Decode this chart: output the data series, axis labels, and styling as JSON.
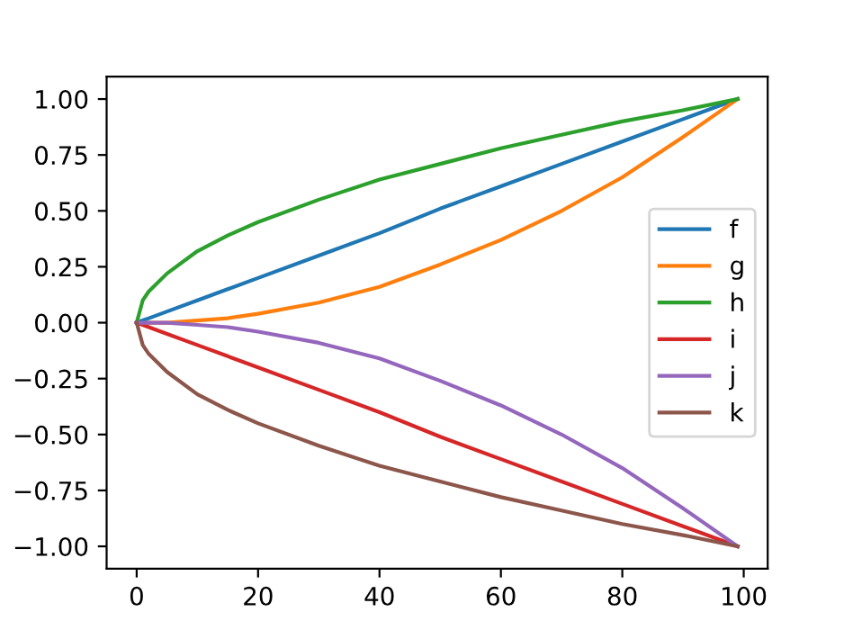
{
  "chart_data": {
    "type": "line",
    "x": [
      0,
      1,
      2,
      5,
      10,
      15,
      20,
      30,
      40,
      50,
      60,
      70,
      80,
      90,
      99
    ],
    "series": [
      {
        "name": "f",
        "color": "#1f77b4",
        "values": [
          0,
          0.01,
          0.02,
          0.05,
          0.1,
          0.15,
          0.2,
          0.3,
          0.4,
          0.51,
          0.61,
          0.71,
          0.81,
          0.91,
          1
        ]
      },
      {
        "name": "g",
        "color": "#ff7f0e",
        "values": [
          null,
          null,
          0,
          0,
          0.01,
          0.02,
          0.04,
          0.09,
          0.16,
          0.26,
          0.37,
          0.5,
          0.65,
          0.83,
          1
        ]
      },
      {
        "name": "h",
        "color": "#2ca02c",
        "values": [
          0,
          0.1,
          0.14,
          0.22,
          0.32,
          0.39,
          0.45,
          0.55,
          0.64,
          0.71,
          0.78,
          0.84,
          0.9,
          0.95,
          1
        ]
      },
      {
        "name": "i",
        "color": "#d62728",
        "values": [
          0,
          -0.01,
          -0.02,
          -0.05,
          -0.1,
          -0.15,
          -0.2,
          -0.3,
          -0.4,
          -0.51,
          -0.61,
          -0.71,
          -0.81,
          -0.91,
          -1
        ]
      },
      {
        "name": "j",
        "color": "#9467bd",
        "values": [
          0,
          0,
          0,
          0,
          -0.01,
          -0.02,
          -0.04,
          -0.09,
          -0.16,
          -0.26,
          -0.37,
          -0.5,
          -0.65,
          -0.83,
          -1
        ]
      },
      {
        "name": "k",
        "color": "#8c564b",
        "values": [
          0,
          -0.1,
          -0.14,
          -0.22,
          -0.32,
          -0.39,
          -0.45,
          -0.55,
          -0.64,
          -0.71,
          -0.78,
          -0.84,
          -0.9,
          -0.95,
          -1
        ]
      }
    ],
    "xlim": [
      -4.95,
      103.95
    ],
    "xticks": [
      0,
      20,
      40,
      60,
      80,
      100
    ],
    "ylim": [
      -1.1,
      1.1
    ],
    "yticks": [
      {
        "value": -1,
        "label": "−1.00"
      },
      {
        "value": -0.75,
        "label": "−0.75"
      },
      {
        "value": -0.5,
        "label": "−0.50"
      },
      {
        "value": -0.25,
        "label": "−0.25"
      },
      {
        "value": 0,
        "label": "0.00"
      },
      {
        "value": 0.25,
        "label": "0.25"
      },
      {
        "value": 0.5,
        "label": "0.50"
      },
      {
        "value": 0.75,
        "label": "0.75"
      },
      {
        "value": 1,
        "label": "1.00"
      }
    ],
    "legend": "center right",
    "grid": false
  }
}
